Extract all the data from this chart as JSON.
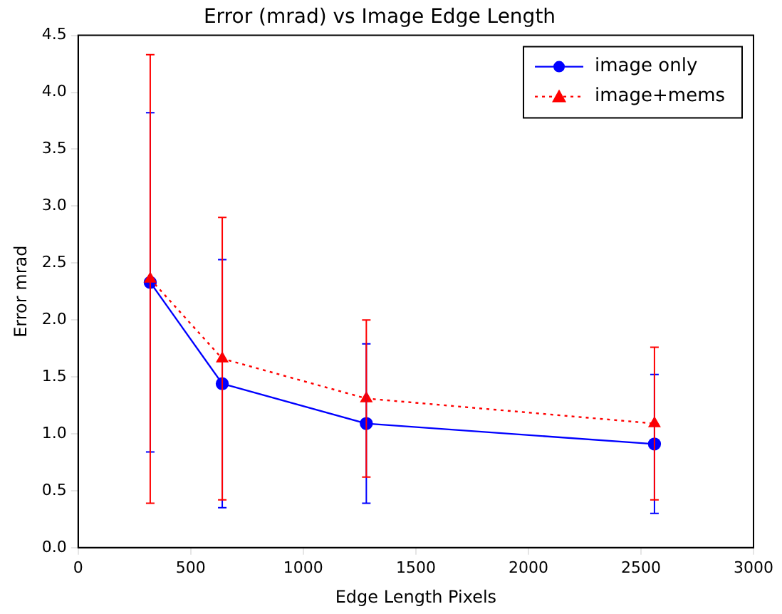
{
  "chart_data": {
    "type": "line",
    "title": "Error (mrad) vs Image Edge Length",
    "xlabel": "Edge Length Pixels",
    "ylabel": "Error mrad",
    "x": [
      320,
      640,
      1280,
      2560
    ],
    "series": [
      {
        "name": "image only",
        "color": "#0000ff",
        "values": [
          2.33,
          1.44,
          1.09,
          0.91
        ],
        "errors": [
          1.49,
          1.09,
          0.7,
          0.61
        ],
        "marker": "circle",
        "line_style": "solid"
      },
      {
        "name": "image+mems",
        "color": "#ff0000",
        "values": [
          2.36,
          1.66,
          1.31,
          1.09
        ],
        "errors": [
          1.97,
          1.24,
          0.69,
          0.67
        ],
        "marker": "triangle",
        "line_style": "dotted"
      }
    ],
    "xlim": [
      0,
      3000
    ],
    "xticks": [
      0,
      500,
      1000,
      1500,
      2000,
      2500,
      3000
    ],
    "ylim": [
      0,
      4.5
    ],
    "yticks": [
      {
        "value": 0,
        "label": "0.0"
      },
      {
        "value": 0.5,
        "label": "0.5"
      },
      {
        "value": 1,
        "label": "1.0"
      },
      {
        "value": 1.5,
        "label": "1.5"
      },
      {
        "value": 2,
        "label": "2.0"
      },
      {
        "value": 2.5,
        "label": "2.5"
      },
      {
        "value": 3,
        "label": "3.0"
      },
      {
        "value": 3.5,
        "label": "3.5"
      },
      {
        "value": 4,
        "label": "4.0"
      },
      {
        "value": 4.5,
        "label": "4.5"
      }
    ],
    "grid": false,
    "legend": "top right"
  }
}
